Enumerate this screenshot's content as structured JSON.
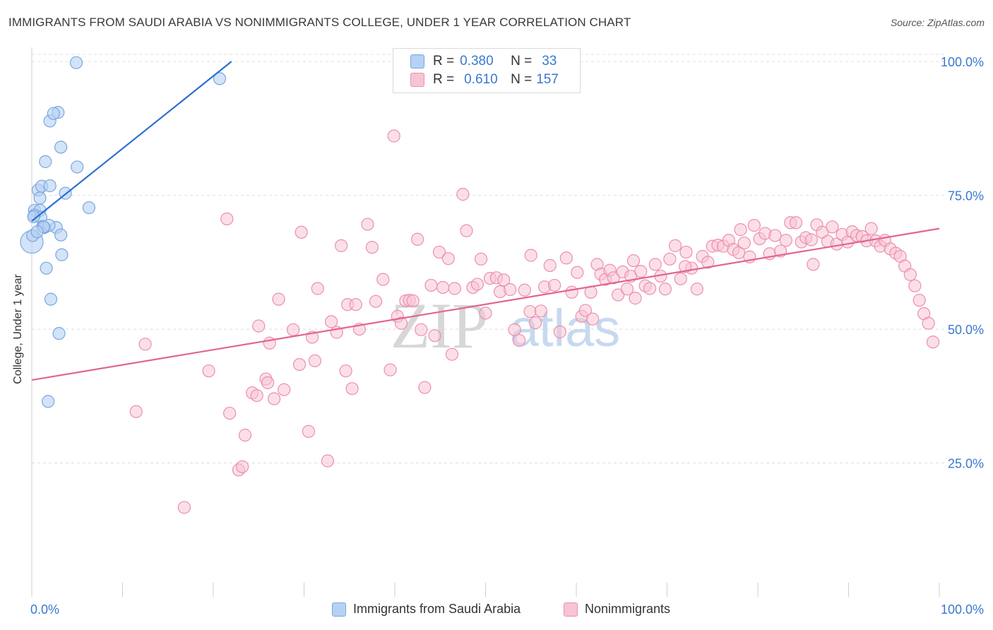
{
  "title": "IMMIGRANTS FROM SAUDI ARABIA VS NONIMMIGRANTS COLLEGE, UNDER 1 YEAR CORRELATION CHART",
  "source": "Source: ZipAtlas.com",
  "watermark": {
    "zip": "ZIP",
    "atlas": "atlas"
  },
  "colors": {
    "blue_fill": "#b6d1f3",
    "blue_stroke": "#7aa7de",
    "blue_line": "#2a6fcf",
    "pink_fill": "#f7c4d4",
    "pink_stroke": "#ec8fae",
    "pink_line": "#e2658f",
    "axis_text": "#3a78d0",
    "grid": "#dddddd"
  },
  "legend": {
    "rows": [
      {
        "r_label": "R =",
        "r_value": "0.380",
        "n_label": "N =",
        "n_value": "33"
      },
      {
        "r_label": "R =",
        "r_value": "0.610",
        "n_label": "N =",
        "n_value": "157"
      }
    ]
  },
  "chart_data": {
    "type": "scatter",
    "title": "IMMIGRANTS FROM SAUDI ARABIA VS NONIMMIGRANTS COLLEGE, UNDER 1 YEAR CORRELATION CHART",
    "xlabel": "",
    "ylabel": "College, Under 1 year",
    "xlim": [
      0,
      100
    ],
    "ylim": [
      0,
      102
    ],
    "x_tick_labels": [
      "0.0%",
      "100.0%"
    ],
    "y_tick_labels": [
      "100.0%",
      "75.0%",
      "50.0%",
      "25.0%"
    ],
    "y_ticks": [
      100,
      75,
      50,
      25
    ],
    "grid": true,
    "legend_position": "top-center",
    "series": [
      {
        "name": "Immigrants from Saudi Arabia",
        "color": "#b6d1f3",
        "points": [
          [
            4.9,
            99.8
          ],
          [
            20.7,
            96.8
          ],
          [
            2.9,
            90.5
          ],
          [
            2.0,
            88.9
          ],
          [
            3.2,
            84.0
          ],
          [
            1.5,
            81.3
          ],
          [
            5.0,
            80.3
          ],
          [
            0.7,
            76.0
          ],
          [
            1.1,
            76.7
          ],
          [
            2.0,
            76.8
          ],
          [
            3.7,
            75.4
          ],
          [
            0.9,
            74.5
          ],
          [
            6.3,
            72.7
          ],
          [
            0.3,
            72.2
          ],
          [
            0.9,
            72.2
          ],
          [
            0.3,
            71.3
          ],
          [
            1.0,
            70.9
          ],
          [
            1.2,
            69.2
          ],
          [
            1.4,
            69.0
          ],
          [
            2.7,
            69.0
          ],
          [
            3.2,
            67.6
          ],
          [
            0.0,
            66.3
          ],
          [
            3.3,
            63.9
          ],
          [
            1.6,
            61.4
          ],
          [
            2.1,
            55.6
          ],
          [
            3.0,
            49.2
          ],
          [
            1.8,
            36.5
          ],
          [
            0.2,
            71.0
          ],
          [
            1.9,
            69.4
          ],
          [
            1.3,
            69.1
          ],
          [
            0.1,
            67.5
          ],
          [
            0.6,
            68.2
          ],
          [
            2.4,
            90.3
          ]
        ],
        "trend": {
          "x": [
            0,
            22
          ],
          "y": [
            70.2,
            100
          ]
        }
      },
      {
        "name": "Nonimmigrants",
        "color": "#f7c4d4",
        "points": [
          [
            11.5,
            34.6
          ],
          [
            12.5,
            47.2
          ],
          [
            16.8,
            16.7
          ],
          [
            19.5,
            42.2
          ],
          [
            21.5,
            70.6
          ],
          [
            21.8,
            34.3
          ],
          [
            22.8,
            23.7
          ],
          [
            23.2,
            24.3
          ],
          [
            24.3,
            38.1
          ],
          [
            24.8,
            37.6
          ],
          [
            25.0,
            50.6
          ],
          [
            25.8,
            40.7
          ],
          [
            26.0,
            40.0
          ],
          [
            26.7,
            37.0
          ],
          [
            27.2,
            55.6
          ],
          [
            27.8,
            38.7
          ],
          [
            28.8,
            49.9
          ],
          [
            29.5,
            43.4
          ],
          [
            29.7,
            68.1
          ],
          [
            30.5,
            30.9
          ],
          [
            30.9,
            48.5
          ],
          [
            31.5,
            57.6
          ],
          [
            32.6,
            25.4
          ],
          [
            33.0,
            51.4
          ],
          [
            33.6,
            49.4
          ],
          [
            34.1,
            65.6
          ],
          [
            34.6,
            42.2
          ],
          [
            34.8,
            54.6
          ],
          [
            35.3,
            38.9
          ],
          [
            35.7,
            54.6
          ],
          [
            36.1,
            50.0
          ],
          [
            37.0,
            69.6
          ],
          [
            37.5,
            65.3
          ],
          [
            37.9,
            55.2
          ],
          [
            38.7,
            59.3
          ],
          [
            39.5,
            42.4
          ],
          [
            39.9,
            86.1
          ],
          [
            40.3,
            52.4
          ],
          [
            40.7,
            51.1
          ],
          [
            41.2,
            55.3
          ],
          [
            41.6,
            55.4
          ],
          [
            42.0,
            55.3
          ],
          [
            42.5,
            66.8
          ],
          [
            42.9,
            49.9
          ],
          [
            43.3,
            39.1
          ],
          [
            44.0,
            58.2
          ],
          [
            44.4,
            48.8
          ],
          [
            44.9,
            64.4
          ],
          [
            45.3,
            57.8
          ],
          [
            45.9,
            63.2
          ],
          [
            46.3,
            45.3
          ],
          [
            46.6,
            57.6
          ],
          [
            47.5,
            75.2
          ],
          [
            47.9,
            68.4
          ],
          [
            48.6,
            57.8
          ],
          [
            49.1,
            58.4
          ],
          [
            49.5,
            63.1
          ],
          [
            50.0,
            53.0
          ],
          [
            50.5,
            59.5
          ],
          [
            51.2,
            59.6
          ],
          [
            51.6,
            57.0
          ],
          [
            52.0,
            59.2
          ],
          [
            52.7,
            57.4
          ],
          [
            53.2,
            49.9
          ],
          [
            53.7,
            47.9
          ],
          [
            54.3,
            57.3
          ],
          [
            54.9,
            53.3
          ],
          [
            55.5,
            51.2
          ],
          [
            56.1,
            53.4
          ],
          [
            56.5,
            57.9
          ],
          [
            57.1,
            61.9
          ],
          [
            57.6,
            58.2
          ],
          [
            58.2,
            49.5
          ],
          [
            58.9,
            63.3
          ],
          [
            59.5,
            56.9
          ],
          [
            60.1,
            60.6
          ],
          [
            60.6,
            52.4
          ],
          [
            61.0,
            53.5
          ],
          [
            61.6,
            56.9
          ],
          [
            62.3,
            62.1
          ],
          [
            62.7,
            60.3
          ],
          [
            63.2,
            59.3
          ],
          [
            63.7,
            61.0
          ],
          [
            64.1,
            59.6
          ],
          [
            64.6,
            56.4
          ],
          [
            65.1,
            60.7
          ],
          [
            65.6,
            57.5
          ],
          [
            66.0,
            59.9
          ],
          [
            66.5,
            55.8
          ],
          [
            67.1,
            60.8
          ],
          [
            67.6,
            58.1
          ],
          [
            68.1,
            57.6
          ],
          [
            68.7,
            62.1
          ],
          [
            69.3,
            59.9
          ],
          [
            69.8,
            57.5
          ],
          [
            70.3,
            63.1
          ],
          [
            70.9,
            65.6
          ],
          [
            71.5,
            59.4
          ],
          [
            72.1,
            64.4
          ],
          [
            72.7,
            61.4
          ],
          [
            73.3,
            57.5
          ],
          [
            73.9,
            63.6
          ],
          [
            74.5,
            62.5
          ],
          [
            75.0,
            65.5
          ],
          [
            75.6,
            65.7
          ],
          [
            76.2,
            65.5
          ],
          [
            76.8,
            66.6
          ],
          [
            77.3,
            64.9
          ],
          [
            77.9,
            64.3
          ],
          [
            78.5,
            66.1
          ],
          [
            79.1,
            63.5
          ],
          [
            79.6,
            69.4
          ],
          [
            80.2,
            66.9
          ],
          [
            80.8,
            67.9
          ],
          [
            81.3,
            64.1
          ],
          [
            81.9,
            67.5
          ],
          [
            82.5,
            64.6
          ],
          [
            83.1,
            66.6
          ],
          [
            83.6,
            69.9
          ],
          [
            84.2,
            69.9
          ],
          [
            84.8,
            66.3
          ],
          [
            85.3,
            67.1
          ],
          [
            85.9,
            66.7
          ],
          [
            86.5,
            69.5
          ],
          [
            87.1,
            68.1
          ],
          [
            87.7,
            66.4
          ],
          [
            88.2,
            69.1
          ],
          [
            88.7,
            65.9
          ],
          [
            89.3,
            67.7
          ],
          [
            89.9,
            66.3
          ],
          [
            90.4,
            68.2
          ],
          [
            90.9,
            67.5
          ],
          [
            91.5,
            67.3
          ],
          [
            92.0,
            66.5
          ],
          [
            92.5,
            68.8
          ],
          [
            93.0,
            66.5
          ],
          [
            93.5,
            65.5
          ],
          [
            94.0,
            66.6
          ],
          [
            94.6,
            65.0
          ],
          [
            95.2,
            64.2
          ],
          [
            95.7,
            63.6
          ],
          [
            96.2,
            61.8
          ],
          [
            96.8,
            60.2
          ],
          [
            97.3,
            58.1
          ],
          [
            97.8,
            55.4
          ],
          [
            98.3,
            52.9
          ],
          [
            98.8,
            51.1
          ],
          [
            99.3,
            47.6
          ],
          [
            23.5,
            30.2
          ],
          [
            26.2,
            47.4
          ],
          [
            31.2,
            44.1
          ],
          [
            55.0,
            63.8
          ],
          [
            61.8,
            51.9
          ],
          [
            66.3,
            62.8
          ],
          [
            72.0,
            61.7
          ],
          [
            78.1,
            68.6
          ],
          [
            86.1,
            62.1
          ]
        ],
        "trend": {
          "x": [
            0,
            100
          ],
          "y": [
            40.5,
            68.8
          ]
        }
      }
    ]
  }
}
